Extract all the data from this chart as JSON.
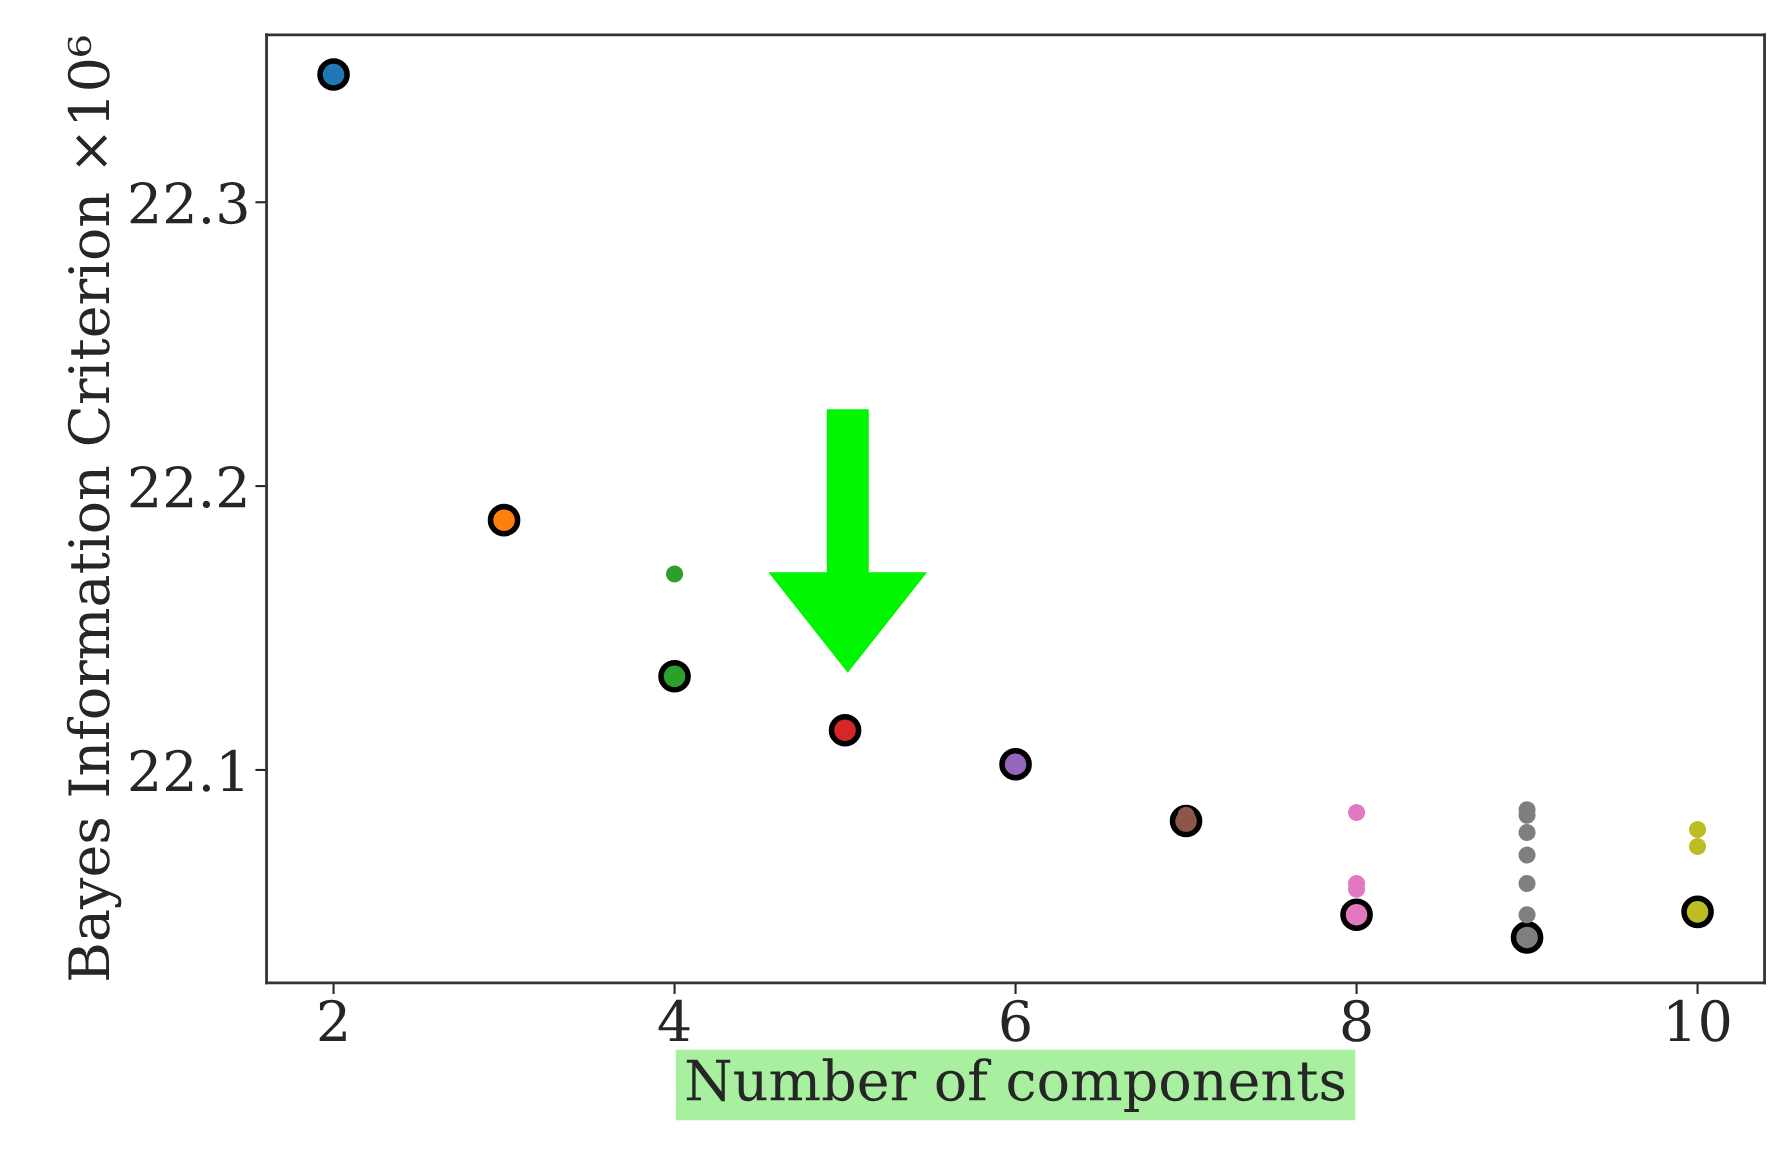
{
  "chart_data": {
    "type": "scatter",
    "xlabel": "Number of components",
    "ylabel": "Bayes Information Criterion ×10⁶",
    "xlim": [
      1.607,
      10.393
    ],
    "ylim": [
      22.025,
      22.359
    ],
    "xticks": [
      2,
      4,
      6,
      8,
      10
    ],
    "yticks": [
      22.1,
      22.2,
      22.3
    ],
    "grid": false,
    "legend": false,
    "marker": "circle",
    "series": [
      {
        "x": [
          2,
          3,
          4,
          5,
          6,
          7,
          8,
          9,
          10
        ],
        "values": [
          22.345,
          22.188,
          22.133,
          22.114,
          22.102,
          22.082,
          22.049,
          22.041,
          22.05
        ],
        "colors": [
          "#1f77b4",
          "#ff7f0e",
          "#2ca02c",
          "#d62728",
          "#9467bd",
          "#8c564b",
          "#e377c2",
          "#7f7f7f",
          "#bcbd22"
        ]
      },
      {
        "x": [
          4,
          7,
          8,
          8,
          8,
          9,
          9,
          9,
          9,
          9,
          9,
          10,
          10
        ],
        "values": [
          22.169,
          22.084,
          22.085,
          22.06,
          22.058,
          22.086,
          22.084,
          22.078,
          22.07,
          22.06,
          22.049,
          22.079,
          22.073
        ],
        "colors": [
          "#2ca02c",
          "#8c564b",
          "#e377c2",
          "#e377c2",
          "#e377c2",
          "#7f7f7f",
          "#7f7f7f",
          "#7f7f7f",
          "#7f7f7f",
          "#7f7f7f",
          "#7f7f7f",
          "#bcbd22",
          "#bcbd22"
        ]
      }
    ]
  }
}
